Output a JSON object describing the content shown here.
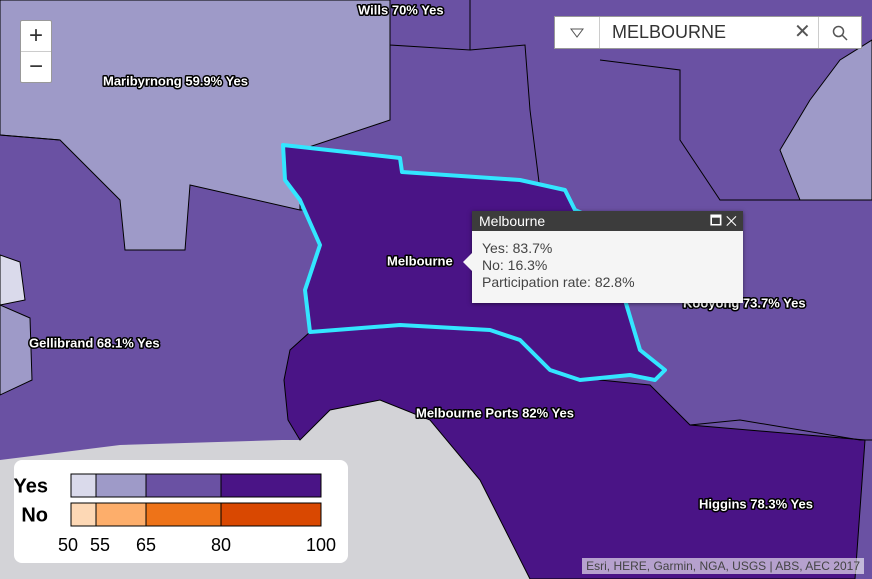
{
  "search": {
    "query": "MELBOURNE"
  },
  "zoom": {
    "in": "+",
    "out": "−"
  },
  "labels": [
    "Wills 70% Yes",
    "Maribyrnong 59.9% Yes",
    "Gellibrand 68.1% Yes",
    "Melbourne",
    "Melbourne Ports 82% Yes",
    "Kooyong 73.7% Yes",
    "Higgins 78.3% Yes"
  ],
  "popup": {
    "title": "Melbourne",
    "lines": [
      "Yes: 83.7%",
      "No: 16.3%",
      "Participation rate: 82.8%"
    ]
  },
  "legend": {
    "rows": [
      {
        "label": "Yes",
        "colors": [
          "#dadaeb",
          "#9e9ac8",
          "#6a51a3",
          "#4a1486"
        ]
      },
      {
        "label": "No",
        "colors": [
          "#fdd8b5",
          "#fdae6b",
          "#ee7318",
          "#d94801"
        ]
      }
    ],
    "breaks": [
      50,
      55,
      65,
      80,
      100
    ]
  },
  "attribution": "Esri, HERE, Garmin, NGA, USGS | ABS, AEC 2017"
}
